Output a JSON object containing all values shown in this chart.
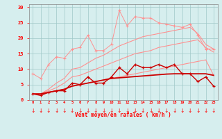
{
  "x": [
    0,
    1,
    2,
    3,
    4,
    5,
    6,
    7,
    8,
    9,
    10,
    11,
    12,
    13,
    14,
    15,
    16,
    17,
    18,
    19,
    20,
    21,
    22,
    23
  ],
  "light_pink": "#ff9090",
  "dark_red": "#cc0000",
  "background_color": "#d6eeee",
  "grid_color": "#a0c8c8",
  "ylabel_values": [
    0,
    5,
    10,
    15,
    20,
    25,
    30
  ],
  "xlabel": "Vent moyen/en rafales ( km/h )",
  "ylim": [
    0,
    31
  ],
  "xlim": [
    -0.5,
    23.5
  ],
  "trend_low": [
    2.0,
    2.0,
    2.5,
    3.0,
    3.5,
    4.5,
    5.0,
    5.5,
    6.0,
    6.5,
    7.0,
    7.5,
    8.0,
    8.5,
    9.0,
    9.5,
    10.0,
    10.5,
    11.0,
    11.5,
    12.0,
    12.5,
    13.0,
    8.0
  ],
  "trend_mid": [
    2.0,
    2.0,
    3.0,
    4.0,
    5.5,
    7.5,
    8.0,
    9.0,
    10.0,
    11.0,
    12.0,
    13.0,
    14.0,
    15.0,
    15.5,
    16.0,
    17.0,
    17.5,
    18.0,
    18.5,
    19.0,
    19.5,
    17.0,
    15.5
  ],
  "trend_high": [
    2.0,
    2.0,
    3.5,
    5.5,
    7.0,
    10.0,
    10.5,
    12.0,
    13.5,
    14.5,
    16.0,
    17.5,
    18.5,
    19.5,
    20.5,
    21.0,
    21.5,
    22.0,
    22.5,
    23.0,
    23.5,
    21.5,
    18.0,
    16.5
  ],
  "noisy_pink": [
    8.5,
    7.0,
    11.5,
    14.0,
    13.5,
    16.5,
    17.0,
    21.0,
    16.0,
    16.0,
    18.0,
    29.0,
    24.0,
    27.0,
    26.5,
    26.5,
    25.0,
    24.5,
    24.0,
    23.5,
    24.5,
    21.0,
    16.5,
    16.5
  ],
  "noisy_red": [
    2.0,
    1.5,
    2.5,
    3.0,
    3.0,
    5.5,
    5.0,
    7.5,
    5.5,
    5.5,
    7.5,
    10.5,
    8.5,
    11.5,
    10.5,
    10.5,
    11.5,
    10.5,
    11.5,
    8.5,
    8.5,
    6.0,
    7.5,
    4.5
  ],
  "trend_red": [
    2.0,
    2.0,
    2.5,
    3.0,
    3.5,
    4.5,
    5.0,
    5.5,
    6.0,
    6.5,
    7.0,
    7.2,
    7.4,
    7.6,
    7.8,
    8.0,
    8.2,
    8.4,
    8.5,
    8.5,
    8.5,
    8.5,
    8.5,
    8.0
  ]
}
